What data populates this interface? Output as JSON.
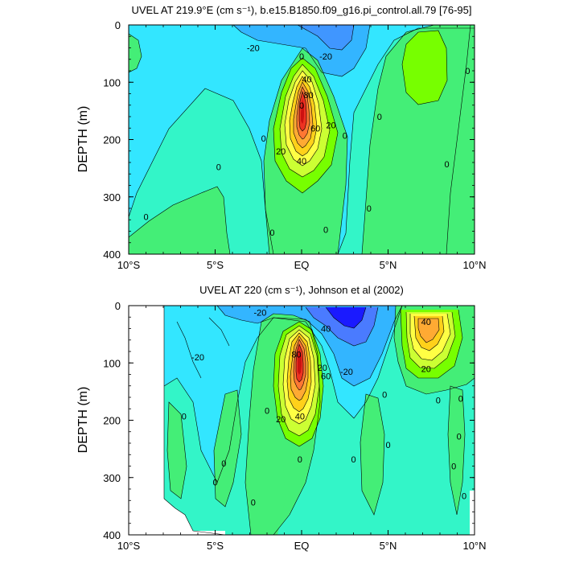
{
  "chart_data": [
    {
      "type": "contour",
      "title": "UVEL AT 219.9°E (cm s⁻¹), b.e15.B1850.f09_g16.pi_control.all.79 [76-95]",
      "ylabel": "DEPTH (m)",
      "xlabel": "",
      "x_ticks": [
        "10°S",
        "5°S",
        "EQ",
        "5°N",
        "10°N"
      ],
      "x_tick_values": [
        -10,
        -5,
        0,
        5,
        10
      ],
      "y_ticks": [
        "0",
        "100",
        "200",
        "300",
        "400"
      ],
      "y_tick_values": [
        0,
        100,
        200,
        300,
        400
      ],
      "xlim": [
        -10,
        10
      ],
      "ylim": [
        0,
        400
      ],
      "y_inverted": true,
      "contour_interval": 10,
      "contour_labels": [
        {
          "text": "-20",
          "x": -2.8,
          "y": 40
        },
        {
          "text": "-20",
          "x": 1.4,
          "y": 55
        },
        {
          "text": "0",
          "x": 0.0,
          "y": 55
        },
        {
          "text": "40",
          "x": 0.3,
          "y": 95
        },
        {
          "text": "80",
          "x": 0.4,
          "y": 122
        },
        {
          "text": "0",
          "x": 0.0,
          "y": 140
        },
        {
          "text": "60",
          "x": 0.8,
          "y": 180
        },
        {
          "text": "20",
          "x": 1.7,
          "y": 175
        },
        {
          "text": "0",
          "x": 2.5,
          "y": 193
        },
        {
          "text": "0",
          "x": -2.2,
          "y": 198
        },
        {
          "text": "20",
          "x": -1.2,
          "y": 220
        },
        {
          "text": "40",
          "x": 0.0,
          "y": 237
        },
        {
          "text": "0",
          "x": -4.8,
          "y": 248
        },
        {
          "text": "0",
          "x": 4.5,
          "y": 160
        },
        {
          "text": "0",
          "x": 9.6,
          "y": 80
        },
        {
          "text": "0",
          "x": 8.4,
          "y": 243
        },
        {
          "text": "0",
          "x": 3.9,
          "y": 320
        },
        {
          "text": "0",
          "x": -9.0,
          "y": 335
        },
        {
          "text": "0",
          "x": -1.7,
          "y": 362
        },
        {
          "text": "0",
          "x": 1.4,
          "y": 357
        }
      ]
    },
    {
      "type": "contour",
      "title": "UVEL AT 220 (cm s⁻¹), Johnson et al (2002)",
      "ylabel": "DEPTH (m)",
      "xlabel": "",
      "x_ticks": [
        "10°S",
        "5°S",
        "EQ",
        "5°N",
        "10°N"
      ],
      "x_tick_values": [
        -10,
        -5,
        0,
        5,
        10
      ],
      "y_ticks": [
        "0",
        "100",
        "200",
        "300",
        "400"
      ],
      "y_tick_values": [
        0,
        100,
        200,
        300,
        400
      ],
      "xlim": [
        -10,
        10
      ],
      "ylim": [
        0,
        400
      ],
      "y_inverted": true,
      "contour_interval": 10,
      "contour_labels": [
        {
          "text": "-20",
          "x": -2.4,
          "y": 12
        },
        {
          "text": "40",
          "x": 1.4,
          "y": 40
        },
        {
          "text": "40",
          "x": 7.2,
          "y": 28
        },
        {
          "text": "-20",
          "x": -6.0,
          "y": 90
        },
        {
          "text": "80",
          "x": -0.3,
          "y": 85
        },
        {
          "text": "20",
          "x": 1.2,
          "y": 108
        },
        {
          "text": "60",
          "x": 1.4,
          "y": 123
        },
        {
          "text": "-20",
          "x": 2.6,
          "y": 115
        },
        {
          "text": "20",
          "x": 7.2,
          "y": 110
        },
        {
          "text": "0",
          "x": 4.8,
          "y": 155
        },
        {
          "text": "0",
          "x": 7.9,
          "y": 165
        },
        {
          "text": "0",
          "x": 9.2,
          "y": 162
        },
        {
          "text": "0",
          "x": -2.0,
          "y": 183
        },
        {
          "text": "0",
          "x": -6.8,
          "y": 193
        },
        {
          "text": "20",
          "x": -1.2,
          "y": 198
        },
        {
          "text": "40",
          "x": -0.1,
          "y": 193
        },
        {
          "text": "0",
          "x": 9.1,
          "y": 228
        },
        {
          "text": "0",
          "x": 5.0,
          "y": 243
        },
        {
          "text": "0",
          "x": -0.1,
          "y": 268
        },
        {
          "text": "0",
          "x": 3.0,
          "y": 268
        },
        {
          "text": "0",
          "x": -4.5,
          "y": 275
        },
        {
          "text": "0",
          "x": 8.8,
          "y": 280
        },
        {
          "text": "0",
          "x": -5.0,
          "y": 308
        },
        {
          "text": "0",
          "x": 9.4,
          "y": 332
        },
        {
          "text": "0",
          "x": -2.8,
          "y": 343
        }
      ]
    }
  ],
  "colors": {
    "strong_neg": "#1a1aff",
    "neg_3": "#4a7bff",
    "neg_2": "#33b5ff",
    "neg_1": "#33e6ff",
    "zero_band": "#33f5c8",
    "pos_1": "#44ee77",
    "pos_2": "#77ff00",
    "pos_3": "#ccff33",
    "pos_4": "#ffff44",
    "pos_5": "#ffd11a",
    "pos_6": "#ffaa33",
    "pos_7": "#ff7733",
    "pos_8": "#ee3322",
    "pos_9": "#cc1111"
  }
}
